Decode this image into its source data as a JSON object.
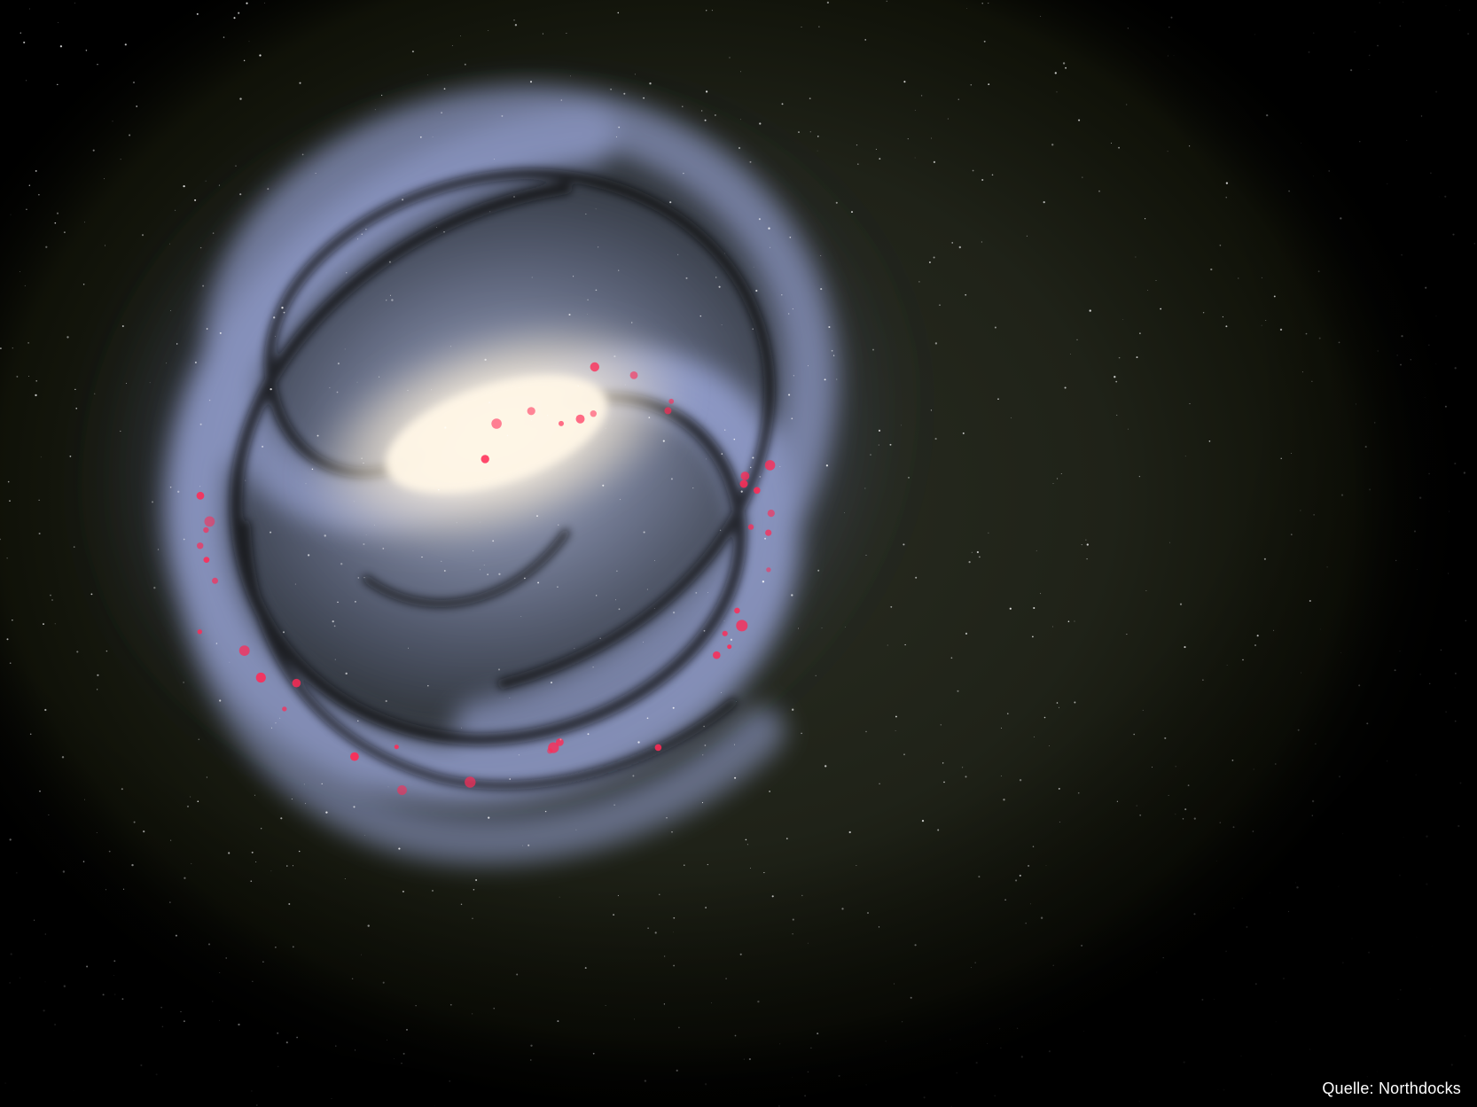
{
  "scene": {
    "subject": "spiral-galaxy",
    "background_color": "#000000",
    "halo_color": "#1f2218",
    "core_color": "#fff6e6",
    "arm_color": "#9aa6d8",
    "dust_color": "#0a0c0c",
    "nebula_color": "#ff2a55",
    "star_color": "#ffffff"
  },
  "credit": {
    "text": "Quelle: Northdocks"
  }
}
